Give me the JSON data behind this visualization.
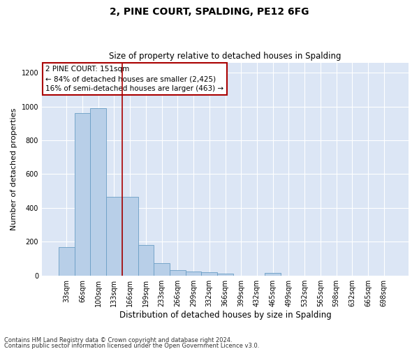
{
  "title_line1": "2, PINE COURT, SPALDING, PE12 6FG",
  "title_line2": "Size of property relative to detached houses in Spalding",
  "xlabel": "Distribution of detached houses by size in Spalding",
  "ylabel": "Number of detached properties",
  "footnote1": "Contains HM Land Registry data © Crown copyright and database right 2024.",
  "footnote2": "Contains public sector information licensed under the Open Government Licence v3.0.",
  "annotation_line1": "2 PINE COURT: 151sqm",
  "annotation_line2": "← 84% of detached houses are smaller (2,425)",
  "annotation_line3": "16% of semi-detached houses are larger (463) →",
  "property_line_x": 3.5,
  "bar_color": "#b8cfe8",
  "bar_edge_color": "#6a9ec5",
  "line_color": "#aa0000",
  "annotation_box_edge_color": "#aa0000",
  "background_color": "#dce6f5",
  "ylim": [
    0,
    1260
  ],
  "yticks": [
    0,
    200,
    400,
    600,
    800,
    1000,
    1200
  ],
  "categories": [
    "33sqm",
    "66sqm",
    "100sqm",
    "133sqm",
    "166sqm",
    "199sqm",
    "233sqm",
    "266sqm",
    "299sqm",
    "332sqm",
    "366sqm",
    "399sqm",
    "432sqm",
    "465sqm",
    "499sqm",
    "532sqm",
    "565sqm",
    "598sqm",
    "632sqm",
    "665sqm",
    "698sqm"
  ],
  "values": [
    170,
    960,
    990,
    465,
    465,
    180,
    75,
    30,
    22,
    20,
    12,
    0,
    0,
    14,
    0,
    0,
    0,
    0,
    0,
    0,
    0
  ]
}
